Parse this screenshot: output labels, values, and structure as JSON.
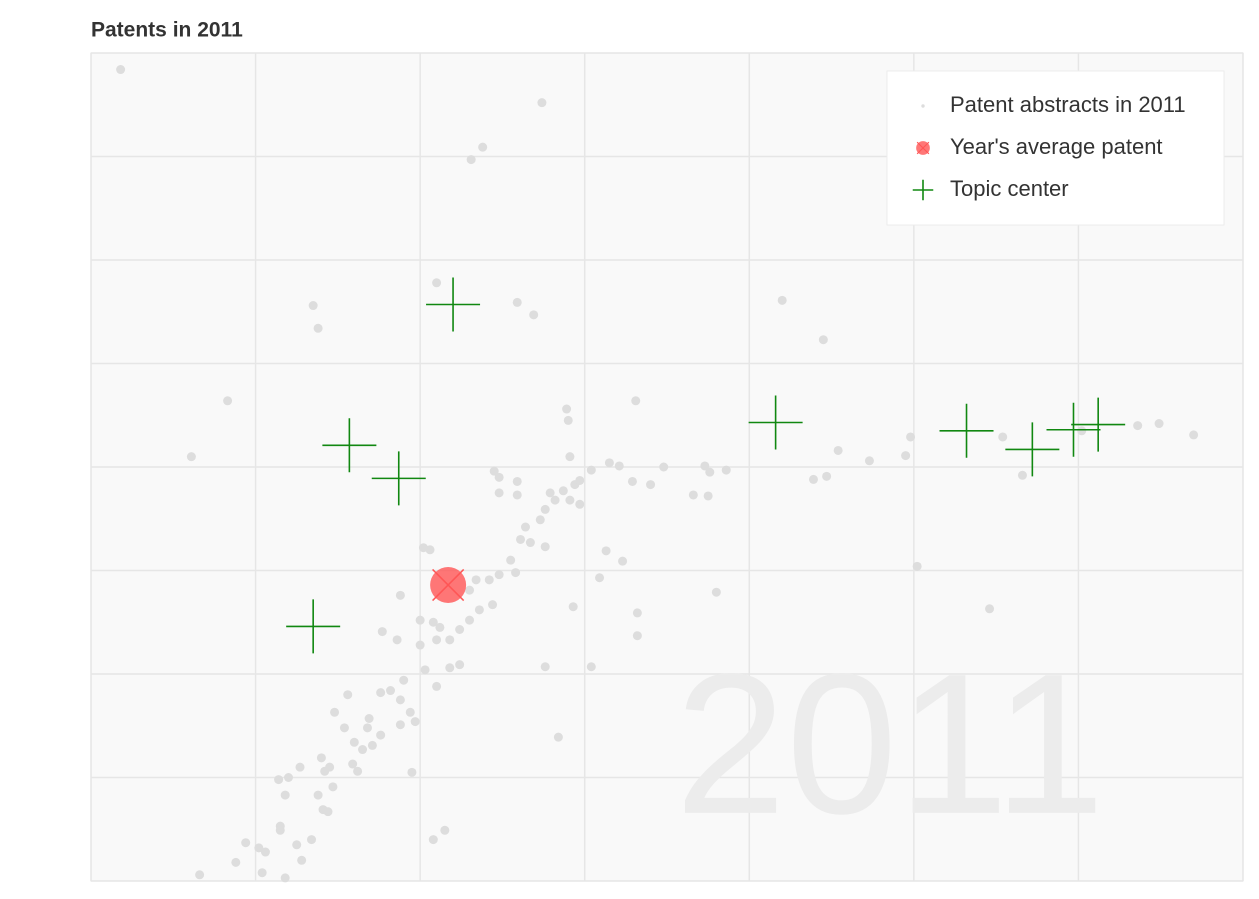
{
  "chart_data": {
    "type": "scatter",
    "title": "Patents in 2011",
    "watermark": "2011",
    "xlim": [
      0,
      7
    ],
    "ylim": [
      0,
      8
    ],
    "xticks": [
      0,
      1,
      2,
      3,
      4,
      5,
      6,
      7
    ],
    "yticks": [
      0,
      1,
      2,
      3,
      4,
      5,
      6,
      7,
      8
    ],
    "grid": true,
    "legend": "upper right",
    "series": [
      {
        "name": "Patent abstracts in 2011",
        "color": "#dddddd",
        "marker": "circle",
        "x": [
          0.18,
          2.74,
          2.38,
          2.31,
          2.1,
          2.59,
          2.69,
          1.35,
          1.38,
          4.2,
          4.45,
          0.83,
          0.61,
          2.89,
          2.9,
          3.31,
          2.91,
          3.04,
          3.15,
          3.21,
          3.48,
          3.73,
          3.86,
          3.76,
          3.29,
          3.4,
          3.66,
          3.75,
          4.54,
          4.73,
          4.95,
          4.98,
          4.39,
          4.47,
          5.54,
          5.66,
          6.02,
          6.36,
          6.49,
          6.7,
          5.02,
          5.46,
          3.8,
          3.13,
          3.23,
          3.09,
          2.93,
          3.32,
          3.32,
          2.76,
          3.04,
          2.84,
          2.15,
          2.08,
          1.95,
          2.45,
          2.48,
          2.59,
          2.59,
          2.48,
          2.79,
          2.87,
          2.94,
          2.97,
          2.91,
          2.82,
          2.97,
          2.76,
          2.73,
          2.64,
          2.61,
          2.67,
          2.76,
          2.55,
          2.48,
          2.58,
          2.42,
          2.34,
          2.3,
          2.44,
          2.36,
          2.3,
          2.24,
          2.18,
          2.12,
          2.0,
          2.08,
          2.02,
          2.06,
          1.88,
          1.77,
          1.86,
          2.0,
          2.1,
          2.24,
          2.18,
          2.03,
          2.1,
          1.9,
          1.82,
          1.76,
          1.56,
          1.88,
          1.94,
          1.97,
          1.88,
          1.69,
          1.68,
          1.48,
          1.54,
          1.76,
          1.71,
          1.6,
          1.65,
          1.4,
          1.45,
          1.59,
          1.62,
          1.42,
          1.27,
          1.14,
          1.2,
          1.18,
          1.47,
          1.38,
          1.15,
          1.15,
          0.94,
          1.02,
          1.06,
          1.25,
          1.34,
          1.41,
          1.44,
          1.28,
          0.88,
          0.66,
          1.04,
          1.18
        ],
        "y": [
          7.84,
          7.52,
          7.09,
          6.97,
          5.78,
          5.59,
          5.47,
          5.56,
          5.34,
          5.61,
          5.23,
          4.64,
          4.1,
          4.56,
          4.45,
          4.64,
          4.1,
          3.97,
          4.04,
          4.01,
          4.0,
          4.01,
          3.97,
          3.95,
          3.86,
          3.83,
          3.73,
          3.72,
          4.16,
          4.06,
          4.11,
          4.29,
          3.88,
          3.91,
          4.29,
          3.92,
          4.35,
          4.4,
          4.42,
          4.31,
          3.04,
          2.63,
          2.79,
          3.19,
          3.09,
          2.93,
          2.65,
          2.59,
          2.37,
          2.07,
          2.07,
          1.39,
          0.49,
          0.4,
          1.05,
          3.96,
          3.9,
          3.86,
          3.73,
          3.75,
          3.75,
          3.77,
          3.83,
          3.87,
          3.68,
          3.68,
          3.64,
          3.59,
          3.49,
          3.42,
          3.3,
          3.27,
          3.23,
          3.1,
          2.96,
          2.98,
          2.91,
          2.91,
          2.81,
          2.67,
          2.62,
          2.52,
          2.43,
          2.33,
          2.45,
          2.52,
          2.5,
          3.22,
          3.2,
          2.76,
          2.41,
          2.33,
          2.28,
          2.33,
          2.09,
          2.06,
          2.04,
          1.88,
          1.94,
          1.84,
          1.82,
          1.8,
          1.75,
          1.63,
          1.54,
          1.51,
          1.57,
          1.48,
          1.63,
          1.48,
          1.41,
          1.31,
          1.34,
          1.27,
          1.19,
          1.1,
          1.13,
          1.06,
          1.06,
          1.1,
          0.98,
          1.0,
          0.83,
          0.91,
          0.83,
          0.53,
          0.49,
          0.37,
          0.32,
          0.28,
          0.35,
          0.4,
          0.69,
          0.67,
          0.2,
          0.18,
          0.06,
          0.08,
          0.03
        ]
      },
      {
        "name": "Year's average patent",
        "color": "#ff5555",
        "marker": "x-circle",
        "x": [
          2.17
        ],
        "y": [
          2.86
        ]
      },
      {
        "name": "Topic center",
        "color": "#118811",
        "marker": "plus",
        "x": [
          2.2,
          1.57,
          1.87,
          1.35,
          4.16,
          5.32,
          5.72,
          5.97,
          6.12
        ],
        "y": [
          5.57,
          4.21,
          3.89,
          2.46,
          4.43,
          4.35,
          4.17,
          4.36,
          4.41
        ]
      }
    ]
  }
}
